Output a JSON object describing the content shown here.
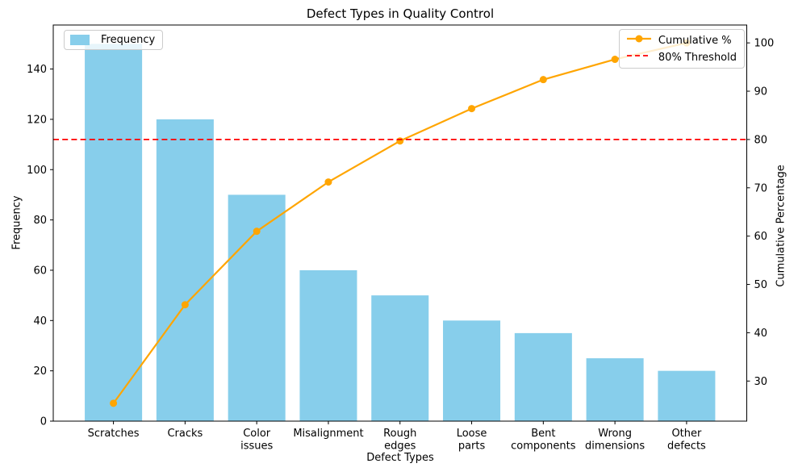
{
  "title": "Defect Types in Quality Control",
  "chart_data": {
    "type": "bar",
    "subtype": "pareto (bar + cumulative line)",
    "title": "Defect Types in Quality Control",
    "xlabel": "Defect Types",
    "ylabel_left": "Frequency",
    "ylabel_right": "Cumulative Percentage",
    "categories": [
      "Scratches",
      "Cracks",
      "Color\nissues",
      "Misalignment",
      "Rough\nedges",
      "Loose\nparts",
      "Bent\ncomponents",
      "Wrong\ndimensions",
      "Other\ndefects"
    ],
    "series": [
      {
        "name": "Frequency",
        "type": "bar",
        "axis": "left",
        "color": "#87CEEB",
        "values": [
          150,
          120,
          90,
          60,
          50,
          40,
          35,
          25,
          20
        ]
      },
      {
        "name": "Cumulative %",
        "type": "line",
        "axis": "right",
        "color": "#FFA500",
        "marker": "circle",
        "values": [
          25.4,
          45.8,
          61.0,
          71.2,
          79.7,
          86.4,
          92.4,
          96.6,
          100.0
        ]
      }
    ],
    "threshold_line": {
      "label": "80% Threshold",
      "axis": "right",
      "value": 80,
      "color": "#FF0000",
      "style": "dashed"
    },
    "axes": {
      "ylim_left": [
        0,
        157.5
      ],
      "ylim_right": [
        21.7,
        103.7
      ],
      "yticks_left": [
        0,
        20,
        40,
        60,
        80,
        100,
        120,
        140
      ],
      "yticks_right": [
        30,
        40,
        50,
        60,
        70,
        80,
        90,
        100
      ],
      "grid": false,
      "spine_color": "#000000",
      "legend_position_left": "upper left",
      "legend_position_right": "upper right"
    },
    "legends": {
      "left": {
        "items": [
          {
            "label": "Frequency",
            "swatch": "bar",
            "color": "#87CEEB"
          }
        ]
      },
      "right": {
        "items": [
          {
            "label": "Cumulative %",
            "swatch": "line-marker",
            "color": "#FFA500"
          },
          {
            "label": "80% Threshold",
            "swatch": "dashed-line",
            "color": "#FF0000"
          }
        ]
      }
    }
  }
}
